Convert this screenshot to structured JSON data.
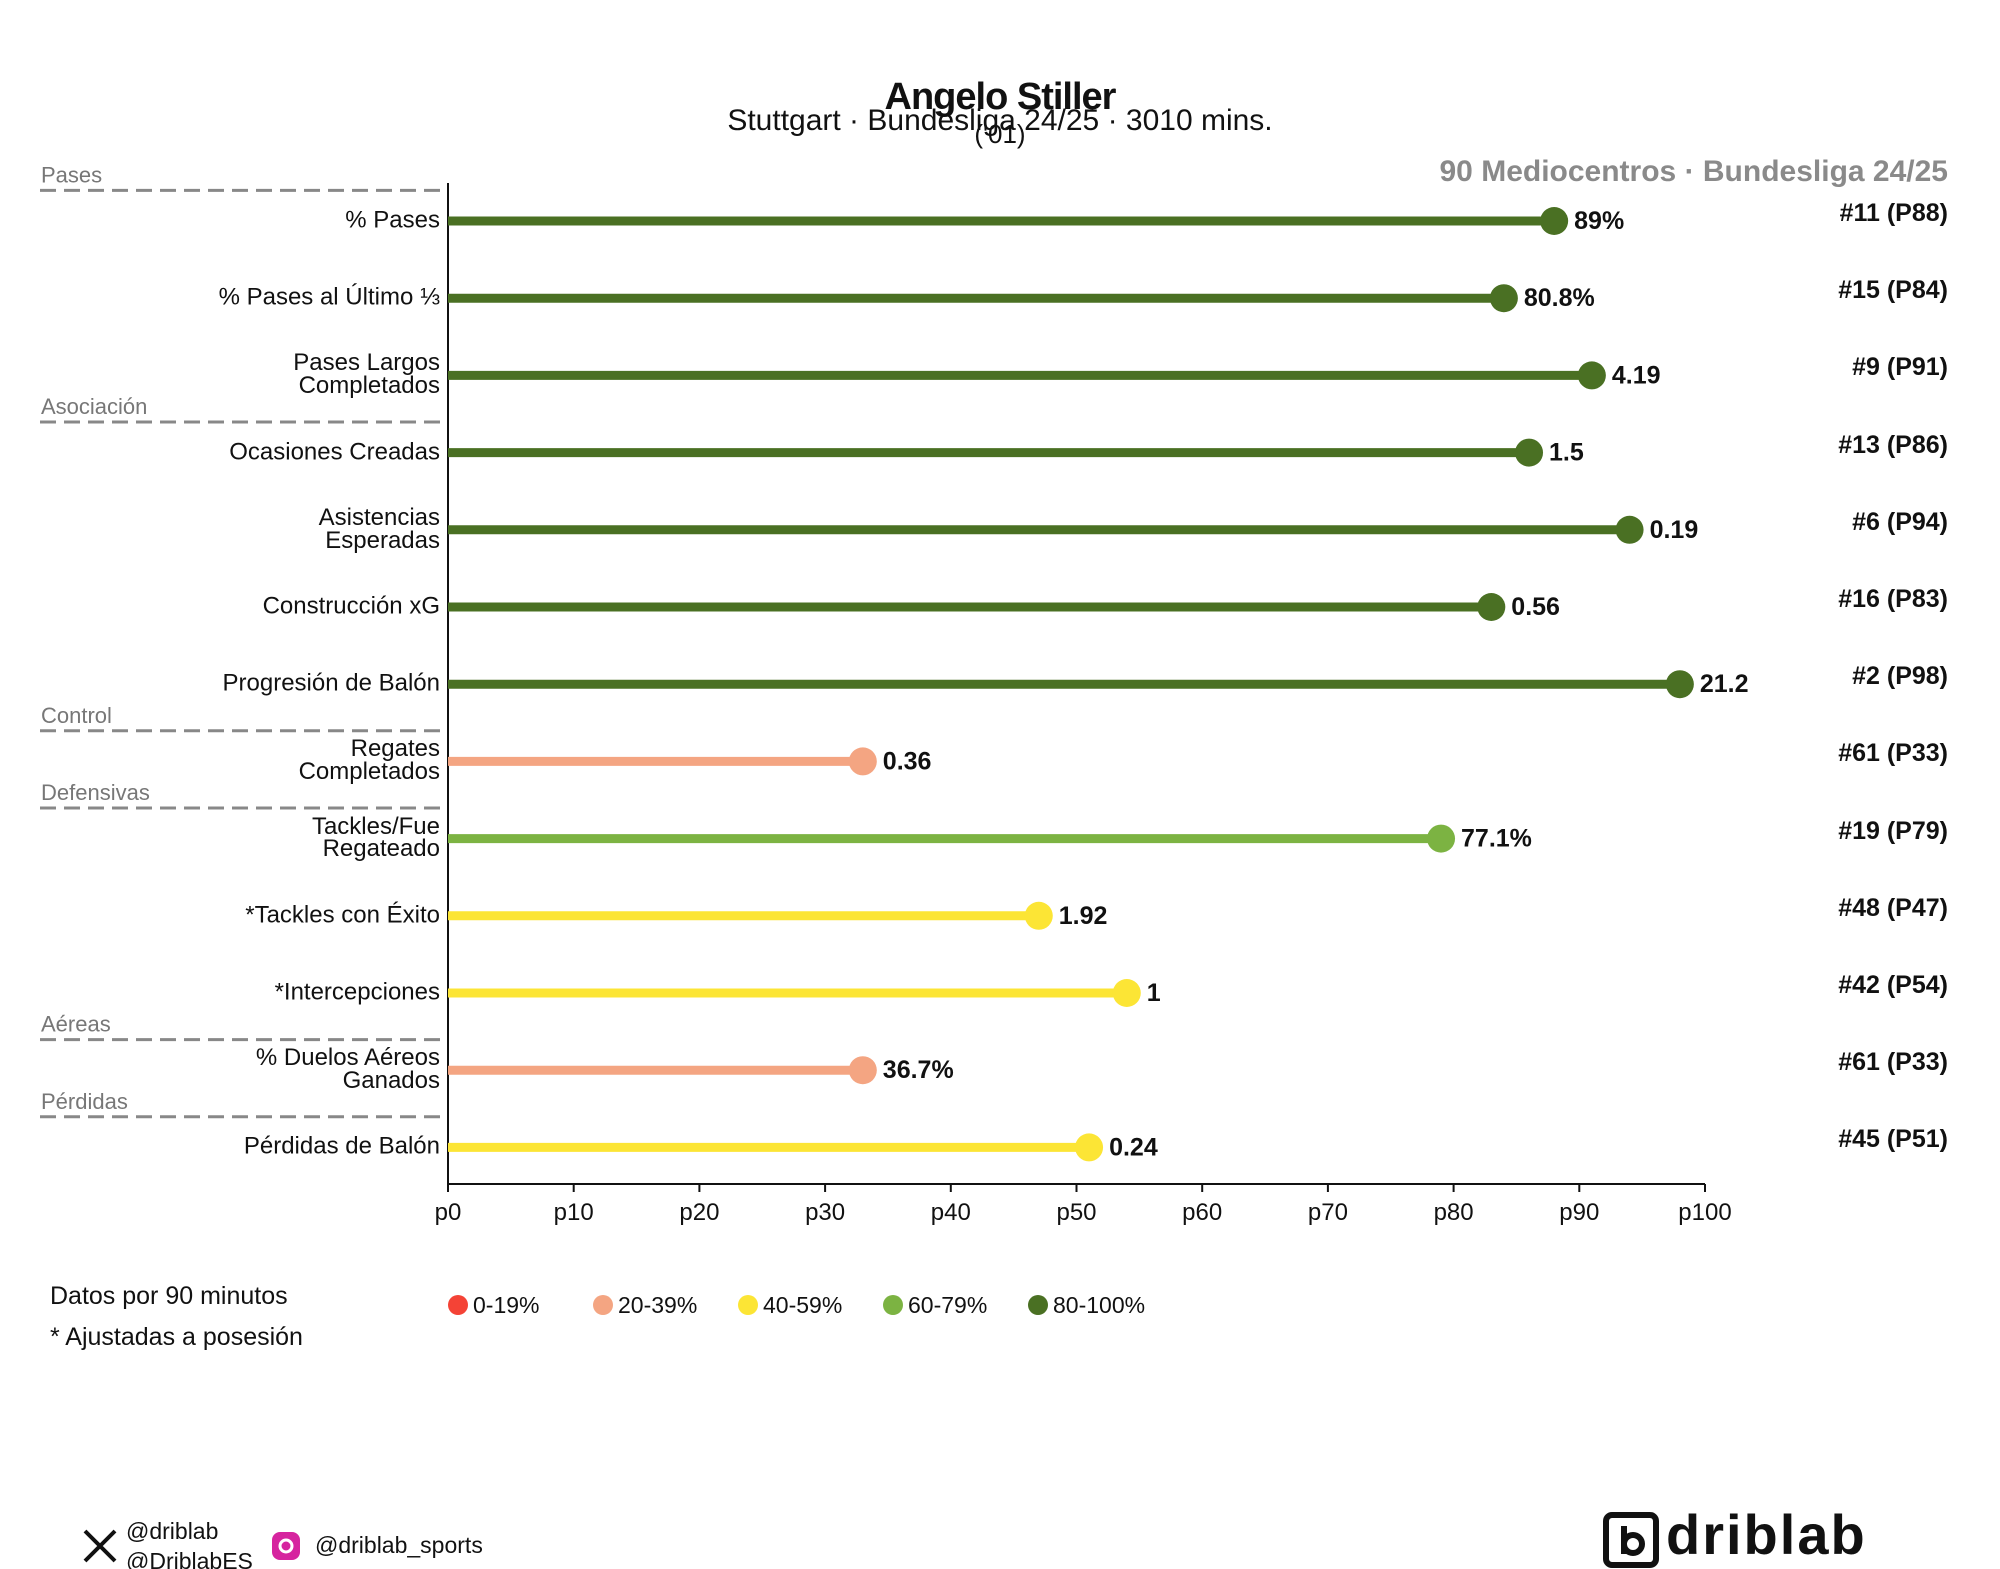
{
  "title": "Angelo Stiller",
  "title_note": "('01)",
  "subtitle": "Stuttgart · Bundesliga 24/25 · 3010 mins.",
  "chart_data": {
    "type": "lollipop",
    "benchmark": "90 Mediocentros · Bundesliga 24/25",
    "categories": [
      "% Pases",
      "% Pases al Último ⅓",
      "Pases Largos\nCompletados",
      "Ocasiones Creadas",
      "Asistencias\nEsperadas",
      "Construcción xG",
      "Progresión de Balón",
      "Regates\nCompletados",
      "Tackles/Fue\nRegateado",
      "*Tackles con Éxito",
      "*Intercepciones",
      "% Duelos Aéreos\nGanados",
      "Pérdidas de Balón"
    ],
    "values": [
      88,
      84,
      91,
      86,
      94,
      83,
      98,
      33,
      79,
      47,
      54,
      33,
      51
    ],
    "metric_values": [
      "89%",
      "80.8%",
      "4.19",
      "1.5",
      "0.19",
      "0.56",
      "21.2",
      "0.36",
      "77.1%",
      "1.92",
      "1",
      "36.7%",
      "0.24"
    ],
    "ranks": [
      "#11 (P88)",
      "#15 (P84)",
      "#9 (P91)",
      "#13 (P86)",
      "#6 (P94)",
      "#16 (P83)",
      "#2 (P98)",
      "#61 (P33)",
      "#19 (P79)",
      "#48 (P47)",
      "#42 (P54)",
      "#61 (P33)",
      "#45 (P51)"
    ],
    "colors": [
      "#4a7023",
      "#4a7023",
      "#4a7023",
      "#4a7023",
      "#4a7023",
      "#4a7023",
      "#4a7023",
      "#f4a582",
      "#7cb342",
      "#fce535",
      "#fce535",
      "#f4a582",
      "#fce535"
    ],
    "sections": [
      {
        "label": "Pases",
        "start": 0
      },
      {
        "label": "Asociación",
        "start": 3
      },
      {
        "label": "Control",
        "start": 7
      },
      {
        "label": "Defensivas",
        "start": 8
      },
      {
        "label": "Aéreas",
        "start": 11
      },
      {
        "label": "Pérdidas",
        "start": 12
      }
    ],
    "xlim": [
      0,
      100
    ],
    "xticks": [
      {
        "value": 0,
        "label": "p0"
      },
      {
        "value": 10,
        "label": "p10"
      },
      {
        "value": 20,
        "label": "p20"
      },
      {
        "value": 30,
        "label": "p30"
      },
      {
        "value": 40,
        "label": "p40"
      },
      {
        "value": 50,
        "label": "p50"
      },
      {
        "value": 60,
        "label": "p60"
      },
      {
        "value": 70,
        "label": "p70"
      },
      {
        "value": 80,
        "label": "p80"
      },
      {
        "value": 90,
        "label": "p90"
      },
      {
        "value": 100,
        "label": "p100"
      }
    ],
    "legend": [
      {
        "label": "0-19%",
        "color": "#f44336"
      },
      {
        "label": "20-39%",
        "color": "#f4a582"
      },
      {
        "label": "40-59%",
        "color": "#fce535"
      },
      {
        "label": "60-79%",
        "color": "#7cb342"
      },
      {
        "label": "80-100%",
        "color": "#4a7023"
      }
    ]
  },
  "notes": [
    "Datos por 90 minutos",
    "* Ajustadas a posesión"
  ],
  "footer": {
    "twitter": [
      "@driblab",
      "@DriblabES"
    ],
    "instagram": "@driblab_sports",
    "logo": "driblab"
  }
}
